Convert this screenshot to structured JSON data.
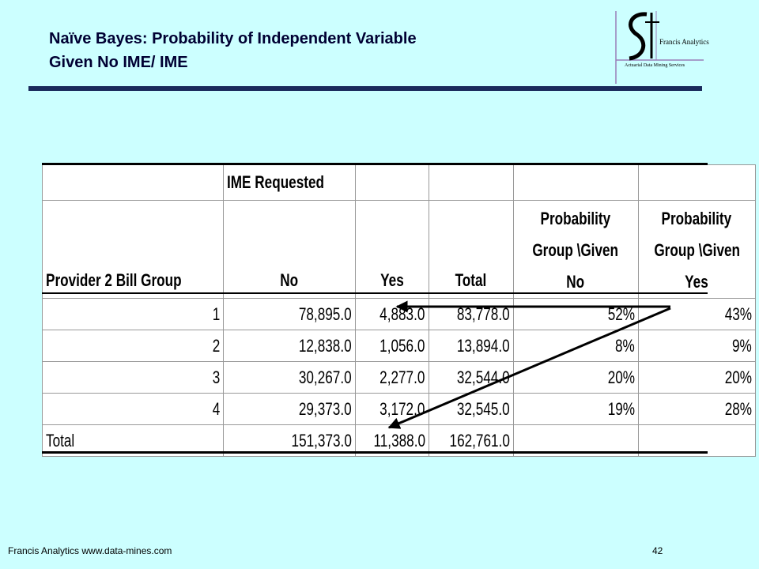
{
  "title": {
    "line1": "Naïve Bayes: Probability of Independent Variable",
    "line2": "Given No IME/ IME"
  },
  "logo": {
    "name": "Francis Analytics",
    "tagline": "Actuarial Data Mining Services"
  },
  "table": {
    "group_header": "IME Requested",
    "headers": {
      "col0": "Provider 2 Bill Group",
      "col1": "No",
      "col2": "Yes",
      "col3": "Total",
      "col4_l1": "Probability",
      "col4_l2": "Group \\Given",
      "col4_l3": "No",
      "col5_l1": "Probability",
      "col5_l2": "Group \\Given",
      "col5_l3": "Yes"
    },
    "rows": [
      {
        "group": "1",
        "no": "78,895.0",
        "yes": "4,883.0",
        "total": "83,778.0",
        "p_no": "52%",
        "p_yes": "43%"
      },
      {
        "group": "2",
        "no": "12,838.0",
        "yes": "1,056.0",
        "total": "13,894.0",
        "p_no": "8%",
        "p_yes": "9%"
      },
      {
        "group": "3",
        "no": "30,267.0",
        "yes": "2,277.0",
        "total": "32,544.0",
        "p_no": "20%",
        "p_yes": "20%"
      },
      {
        "group": "4",
        "no": "29,373.0",
        "yes": "3,172.0",
        "total": "32,545.0",
        "p_no": "19%",
        "p_yes": "28%"
      }
    ],
    "total_row": {
      "label": "Total",
      "no": "151,373.0",
      "yes": "11,388.0",
      "total": "162,761.0"
    }
  },
  "footer": {
    "left": "Francis Analytics www.data-mines.com",
    "page": "42"
  }
}
